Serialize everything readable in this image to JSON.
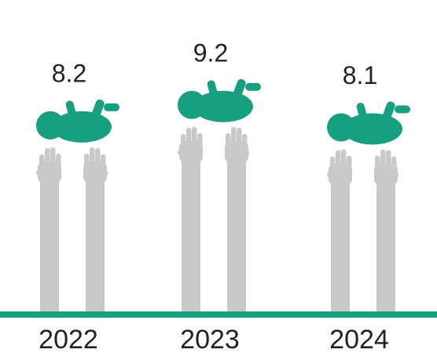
{
  "chart_data": {
    "type": "pictogram",
    "categories": [
      "2022",
      "2023",
      "2024"
    ],
    "values": [
      8.2,
      9.2,
      8.1
    ],
    "baby_color": "#17a07f",
    "arm_color": "#c9c9c9",
    "baseline_color": "#17a07f"
  }
}
